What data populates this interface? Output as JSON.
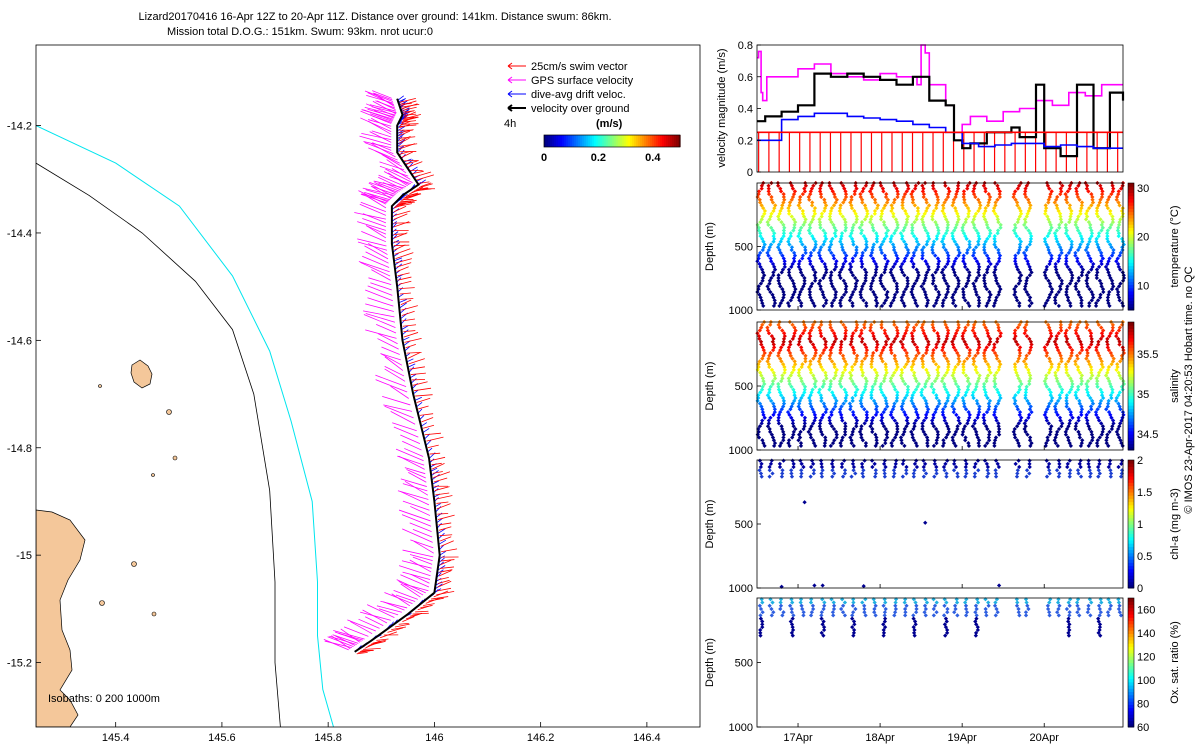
{
  "title_line1": "Lizard20170416 16-Apr 12Z to 20-Apr 11Z. Distance over ground: 141km. Distance swum: 86km.",
  "title_line2": "Mission total D.O.G.: 151km. Swum: 93km. nrot ucur:0",
  "side_note": "© IMOS 23-Apr-2017 04:20:53 Hobart time. no QC",
  "colors": {
    "swim": "#ff0000",
    "gps": "#ff00ff",
    "drift": "#0000ff",
    "ground": "#000000",
    "iso0": "#000000",
    "iso200": "#000000",
    "iso1000": "#00e5ee",
    "land": "#f4c79a"
  },
  "chart_data": [
    {
      "type": "scatter",
      "subtype": "map",
      "x_ticks": [
        "145.4",
        "145.6",
        "145.8",
        "146",
        "146.2",
        "146.4"
      ],
      "x_tick_values": [
        145.4,
        145.6,
        145.8,
        146.0,
        146.2,
        146.4
      ],
      "y_ticks": [
        "-14.2",
        "-14.4",
        "-14.6",
        "-14.8",
        "-15",
        "-15.2"
      ],
      "y_tick_values": [
        -14.2,
        -14.4,
        -14.6,
        -14.8,
        -15.0,
        -15.2
      ],
      "xlim": [
        145.25,
        146.5
      ],
      "ylim": [
        -15.32,
        -14.05
      ],
      "legend": [
        "25cm/s swim vector",
        "GPS surface velocity",
        "dive-avg drift veloc.",
        "velocity over ground"
      ],
      "scale_label": "4h",
      "colorbar_units": "(m/s)",
      "colorbar_ticks": [
        "0",
        "0.2",
        "0.4"
      ],
      "colorbar_range": [
        0,
        0.5
      ],
      "isobaths_label": "Isobaths: 0   200  1000m",
      "track": [
        [
          145.85,
          -15.18
        ],
        [
          145.88,
          -15.16
        ],
        [
          145.95,
          -15.11
        ],
        [
          146.0,
          -15.07
        ],
        [
          146.01,
          -15.0
        ],
        [
          146.0,
          -14.9
        ],
        [
          145.99,
          -14.82
        ],
        [
          145.96,
          -14.7
        ],
        [
          145.94,
          -14.6
        ],
        [
          145.93,
          -14.5
        ],
        [
          145.92,
          -14.42
        ],
        [
          145.92,
          -14.35
        ],
        [
          145.94,
          -14.33
        ],
        [
          145.97,
          -14.31
        ],
        [
          145.93,
          -14.25
        ],
        [
          145.93,
          -14.2
        ],
        [
          145.94,
          -14.18
        ],
        [
          145.93,
          -14.15
        ]
      ],
      "isobath_200": [
        [
          145.25,
          -14.27
        ],
        [
          145.35,
          -14.33
        ],
        [
          145.45,
          -14.4
        ],
        [
          145.55,
          -14.49
        ],
        [
          145.62,
          -14.58
        ],
        [
          145.66,
          -14.7
        ],
        [
          145.69,
          -14.88
        ],
        [
          145.7,
          -15.05
        ],
        [
          145.7,
          -15.2
        ],
        [
          145.71,
          -15.32
        ]
      ],
      "isobath_1000": [
        [
          145.25,
          -14.2
        ],
        [
          145.4,
          -14.27
        ],
        [
          145.52,
          -14.35
        ],
        [
          145.62,
          -14.48
        ],
        [
          145.69,
          -14.62
        ],
        [
          145.73,
          -14.75
        ],
        [
          145.77,
          -14.9
        ],
        [
          145.78,
          -15.05
        ],
        [
          145.78,
          -15.15
        ],
        [
          145.79,
          -15.25
        ],
        [
          145.81,
          -15.32
        ]
      ]
    },
    {
      "type": "line",
      "ylabel": "velocity magnitude (m/s)",
      "ylim": [
        0,
        0.8
      ],
      "y_ticks": [
        "0",
        "0.2",
        "0.4",
        "0.6",
        "0.8"
      ],
      "x_days": [
        16.5,
        20.96
      ],
      "series": [
        {
          "name": "GPS surface velocity",
          "color": "#ff00ff",
          "x": [
            16.5,
            16.52,
            16.55,
            16.57,
            16.62,
            17.0,
            17.2,
            17.4,
            17.6,
            17.8,
            18.0,
            18.2,
            18.45,
            18.5,
            18.55,
            18.6,
            18.8,
            18.9,
            19.0,
            19.1,
            19.3,
            19.5,
            19.7,
            19.9,
            20.1,
            20.3,
            20.5,
            20.7,
            20.96
          ],
          "y": [
            0.72,
            0.76,
            0.5,
            0.45,
            0.6,
            0.65,
            0.68,
            0.62,
            0.6,
            0.58,
            0.62,
            0.6,
            0.55,
            0.8,
            0.75,
            0.55,
            0.42,
            0.25,
            0.3,
            0.35,
            0.32,
            0.38,
            0.4,
            0.45,
            0.42,
            0.5,
            0.48,
            0.55,
            0.55
          ]
        },
        {
          "name": "velocity over ground",
          "color": "#000000",
          "x": [
            16.5,
            16.6,
            16.8,
            17.0,
            17.2,
            17.4,
            17.6,
            17.8,
            18.0,
            18.2,
            18.4,
            18.6,
            18.8,
            18.9,
            19.0,
            19.1,
            19.3,
            19.5,
            19.6,
            19.7,
            19.9,
            20.0,
            20.2,
            20.4,
            20.6,
            20.8,
            20.96
          ],
          "y": [
            0.32,
            0.35,
            0.38,
            0.42,
            0.62,
            0.6,
            0.62,
            0.6,
            0.58,
            0.55,
            0.6,
            0.45,
            0.42,
            0.2,
            0.15,
            0.18,
            0.25,
            0.25,
            0.28,
            0.22,
            0.55,
            0.15,
            0.1,
            0.55,
            0.15,
            0.5,
            0.45
          ]
        },
        {
          "name": "dive-avg drift veloc.",
          "color": "#0000ff",
          "x": [
            16.5,
            16.8,
            17.0,
            17.2,
            17.4,
            17.6,
            17.8,
            18.0,
            18.2,
            18.4,
            18.6,
            18.8,
            19.0,
            19.2,
            19.4,
            19.6,
            19.8,
            20.0,
            20.2,
            20.4,
            20.6,
            20.8,
            20.96
          ],
          "y": [
            0.2,
            0.33,
            0.35,
            0.37,
            0.37,
            0.35,
            0.34,
            0.33,
            0.32,
            0.3,
            0.28,
            0.25,
            0.18,
            0.16,
            0.17,
            0.18,
            0.18,
            0.16,
            0.17,
            0.16,
            0.15,
            0.15,
            0.15
          ]
        },
        {
          "name": "25cm/s swim vector",
          "color": "#ff0000",
          "x": [
            16.5,
            20.96
          ],
          "y": [
            0.25,
            0.25
          ]
        }
      ]
    },
    {
      "type": "scatter",
      "ylabel": "Depth (m)",
      "colorbar_label": "temperature (°C)",
      "y_ticks": [
        "500",
        "1000"
      ],
      "colorbar_ticks": [
        "10",
        "20",
        "30"
      ],
      "colorbar_range": [
        5,
        31
      ],
      "ylim": [
        0,
        1000
      ]
    },
    {
      "type": "scatter",
      "ylabel": "Depth (m)",
      "colorbar_label": "salinity",
      "y_ticks": [
        "500",
        "1000"
      ],
      "colorbar_ticks": [
        "34.5",
        "35",
        "35.5"
      ],
      "colorbar_range": [
        34.3,
        35.9
      ],
      "ylim": [
        0,
        1000
      ]
    },
    {
      "type": "scatter",
      "ylabel": "Depth (m)",
      "colorbar_label": "chl-a (mg m-3)",
      "y_ticks": [
        "500",
        "1000"
      ],
      "colorbar_ticks": [
        "0",
        "0.5",
        "1",
        "1.5",
        "2"
      ],
      "colorbar_range": [
        0,
        2
      ],
      "ylim": [
        0,
        1000
      ]
    },
    {
      "type": "scatter",
      "ylabel": "Depth (m)",
      "colorbar_label": "Ox. sat. ratio (%)",
      "y_ticks": [
        "500",
        "1000"
      ],
      "colorbar_ticks": [
        "60",
        "80",
        "100",
        "120",
        "140",
        "160"
      ],
      "colorbar_range": [
        60,
        170
      ],
      "ylim": [
        0,
        1000
      ],
      "x_ticks": [
        "17Apr",
        "18Apr",
        "19Apr",
        "20Apr"
      ],
      "x_tick_days": [
        17,
        18,
        19,
        20
      ]
    }
  ]
}
